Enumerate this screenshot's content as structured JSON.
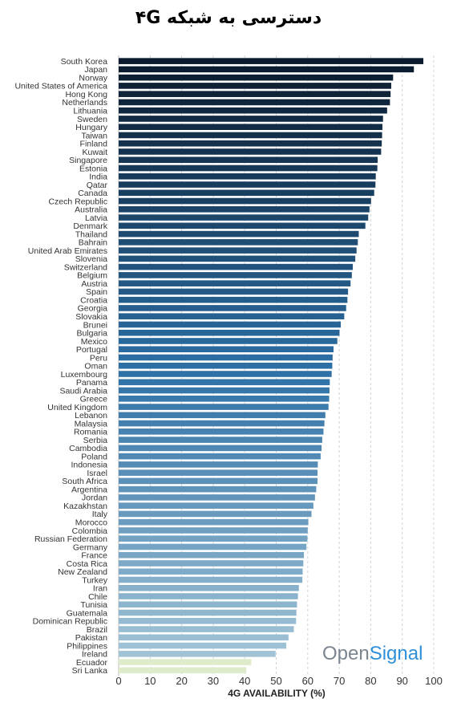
{
  "title": "دسترسی به شبکه ۴G",
  "watermark": {
    "part1": "Open",
    "part2": "Signal",
    "color1": "#7a8590",
    "color2": "#2f8fd8"
  },
  "colors": {
    "dark": "#0b1a2c",
    "mid": "#2c6fa5",
    "light": "#a9c8d9",
    "pale": "#dfeccc"
  },
  "chart_data": {
    "type": "bar",
    "orientation": "horizontal",
    "xlabel": "4G AVAILABILITY (%)",
    "xlim": [
      0,
      100
    ],
    "xticks": [
      0,
      10,
      20,
      30,
      40,
      50,
      60,
      70,
      80,
      90,
      100
    ],
    "grid": "vertical dashed",
    "categories": [
      "South Korea",
      "Japan",
      "Norway",
      "United States of America",
      "Hong Kong",
      "Netherlands",
      "Lithuania",
      "Sweden",
      "Hungary",
      "Taiwan",
      "Finland",
      "Kuwait",
      "Singapore",
      "Estonia",
      "India",
      "Qatar",
      "Canada",
      "Czech Republic",
      "Australia",
      "Latvia",
      "Denmark",
      "Thailand",
      "Bahrain",
      "United Arab Emirates",
      "Slovenia",
      "Switzerland",
      "Belgium",
      "Austria",
      "Spain",
      "Croatia",
      "Georgia",
      "Slovakia",
      "Brunei",
      "Bulgaria",
      "Mexico",
      "Portugal",
      "Peru",
      "Oman",
      "Luxembourg",
      "Panama",
      "Saudi Arabia",
      "Greece",
      "United Kingdom",
      "Lebanon",
      "Malaysia",
      "Romania",
      "Serbia",
      "Cambodia",
      "Poland",
      "Indonesia",
      "Israel",
      "South Africa",
      "Argentina",
      "Jordan",
      "Kazakhstan",
      "Italy",
      "Morocco",
      "Colombia",
      "Russian Federation",
      "Germany",
      "France",
      "Costa Rica",
      "New Zealand",
      "Turkey",
      "Iran",
      "Chile",
      "Tunisia",
      "Guatemala",
      "Dominican Republic",
      "Brazil",
      "Pakistan",
      "Philippines",
      "Ireland",
      "Ecuador",
      "Sri Lanka"
    ],
    "values": [
      96.7,
      93.7,
      87.1,
      86.5,
      86.3,
      86.1,
      85.2,
      83.9,
      83.7,
      83.6,
      83.5,
      83.3,
      82.2,
      82.1,
      81.6,
      81.5,
      81.1,
      80.1,
      79.6,
      79.2,
      78.3,
      76.2,
      75.9,
      75.5,
      75.1,
      74.3,
      74.0,
      73.6,
      72.8,
      72.6,
      72.2,
      71.6,
      70.5,
      70.1,
      69.4,
      68.2,
      67.9,
      67.8,
      67.6,
      67.0,
      66.9,
      66.8,
      66.6,
      65.6,
      65.3,
      65.0,
      64.6,
      64.4,
      64.1,
      63.2,
      63.1,
      63.1,
      62.7,
      62.3,
      61.8,
      61.2,
      60.2,
      60.0,
      59.9,
      59.6,
      58.8,
      58.6,
      58.4,
      58.3,
      57.2,
      56.9,
      56.6,
      56.4,
      56.3,
      55.6,
      53.9,
      53.2,
      49.8,
      42.1,
      40.5
    ]
  }
}
